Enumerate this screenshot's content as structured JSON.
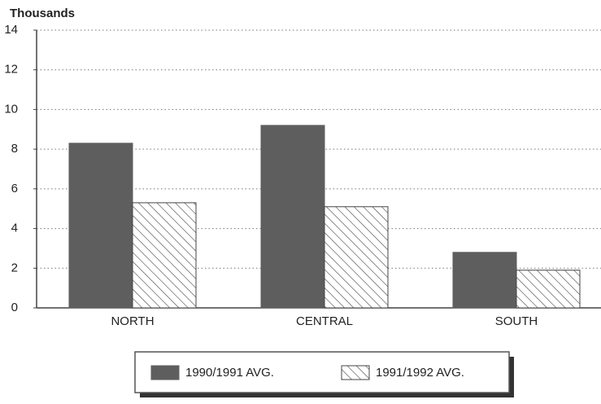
{
  "chart_data": {
    "type": "bar",
    "y_axis_label": "Thousands",
    "categories": [
      "NORTH",
      "CENTRAL",
      "SOUTH"
    ],
    "series": [
      {
        "name": "1990/1991 AVG.",
        "color": "#5e5e5e",
        "hatch": false,
        "values": [
          8.3,
          9.2,
          2.8
        ]
      },
      {
        "name": "1991/1992 AVG.",
        "color": "#444444",
        "hatch": true,
        "values": [
          5.3,
          5.1,
          1.9
        ]
      }
    ],
    "ylim": [
      0,
      14
    ],
    "yticks": [
      0,
      2,
      4,
      6,
      8,
      10,
      12,
      14
    ],
    "grid": true
  }
}
